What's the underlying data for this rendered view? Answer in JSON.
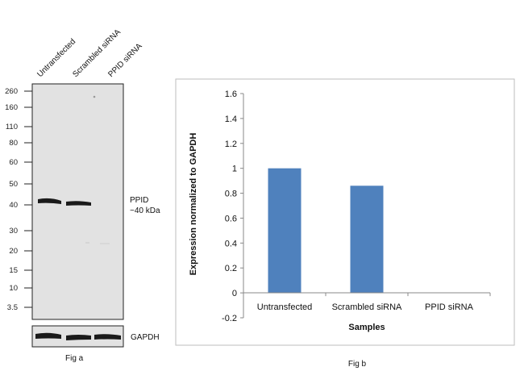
{
  "panel_a": {
    "lanes": [
      "Untransfected",
      "Scrambled siRNA",
      "PPID siRNA"
    ],
    "markers": [
      "260",
      "160",
      "110",
      "80",
      "60",
      "50",
      "40",
      "30",
      "20",
      "15",
      "10",
      "3.5"
    ],
    "band_label_line1": "PPID",
    "band_label_line2": "~40 kDa",
    "loading_label": "GAPDH",
    "caption": "Fig a"
  },
  "panel_b": {
    "caption": "Fig b"
  },
  "chart_data": {
    "type": "bar",
    "categories": [
      "Untransfected",
      "Scrambled siRNA",
      "PPID siRNA"
    ],
    "values": [
      1.0,
      0.86,
      0.0
    ],
    "xlabel": "Samples",
    "ylabel": "Expression normalized to GAPDH",
    "ylim": [
      -0.2,
      1.6
    ],
    "yticks": [
      "1.6",
      "1.4",
      "1.2",
      "1",
      "0.8",
      "0.6",
      "0.4",
      "0.2",
      "0",
      "-0.2"
    ],
    "bar_color": "#4f81bd",
    "grid": false
  }
}
